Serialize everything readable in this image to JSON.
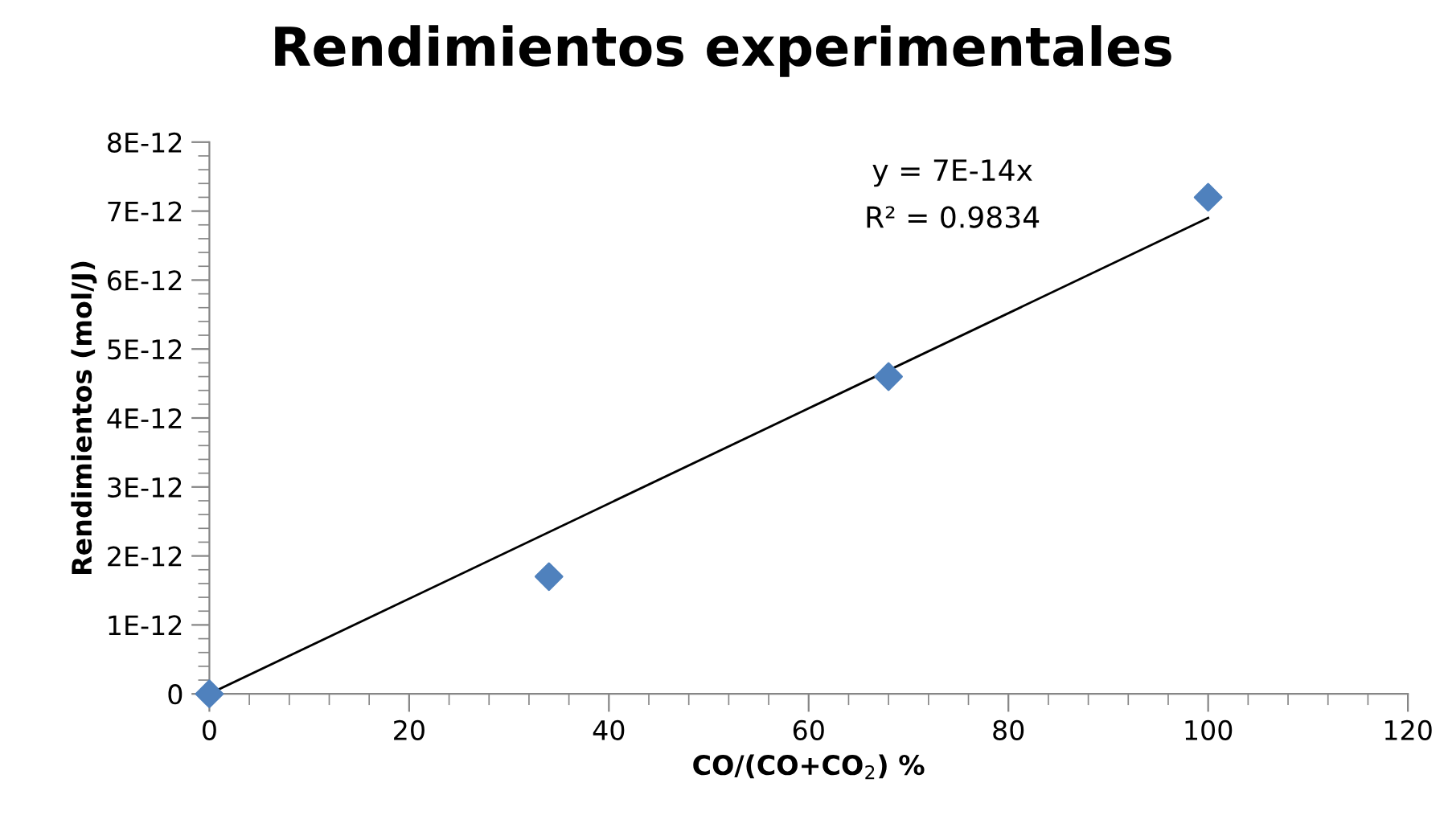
{
  "chart_data": {
    "type": "scatter",
    "title": "Rendimientos experimentales",
    "xlabel": "CO/(CO+CO$_{2}$) %",
    "ylabel": "Rendimientos (mol/J)",
    "series": [
      {
        "color": "#4f81bd",
        "marker": "diamond",
        "x": [
          0,
          34,
          68,
          100
        ],
        "values": [
          0,
          1.7e-12,
          4.6e-12,
          7.2e-12
        ]
      },
      {
        "type": "line",
        "color": "#000000",
        "marker": "none",
        "line_style": "solid",
        "x": [
          0,
          100
        ],
        "values": [
          0,
          6.9e-12
        ]
      }
    ],
    "xlim": [
      0,
      120
    ],
    "xticks": [
      0,
      20,
      40,
      60,
      80,
      100,
      120
    ],
    "ylim": [
      0,
      8e-12
    ],
    "yticks": [
      0,
      {
        "value": 1e-12,
        "label": "1E-12"
      },
      {
        "value": 2e-12,
        "label": "2E-12"
      },
      {
        "value": 3e-12,
        "label": "3E-12"
      },
      {
        "value": 4e-12,
        "label": "4E-12"
      },
      {
        "value": 5e-12,
        "label": "5E-12"
      },
      {
        "value": 6e-12,
        "label": "6E-12"
      },
      {
        "value": 7e-12,
        "label": "7E-12"
      },
      {
        "value": 8e-12,
        "label": "8E-12"
      }
    ],
    "annotations": [
      "y = 7E-14x",
      "R² = 0.9834"
    ],
    "grid": false,
    "legend": false
  }
}
